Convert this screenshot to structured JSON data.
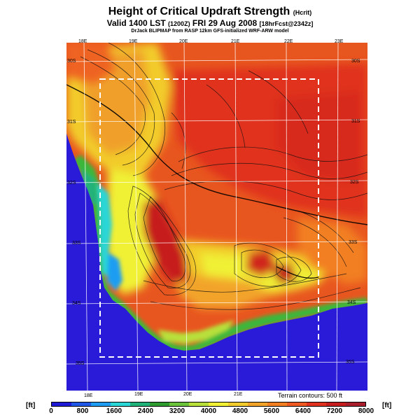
{
  "header": {
    "title_main": "Height of Critical Updraft Strength",
    "title_unit": "(Hcrit)",
    "valid_main": "Valid 1400 LST",
    "valid_zulu": "(1200Z)",
    "valid_date": "FRI 29 Aug 2008",
    "valid_fcst": "[18hrFcst@2342z]",
    "credit": "DrJack BLIPMAP from RASP 12km GFS-initialized WRF-ARW model"
  },
  "map": {
    "lon_labels_top": [
      "18E",
      "19E",
      "20E",
      "21E",
      "22E",
      "23E"
    ],
    "lon_labels_bottom": [
      "18E",
      "19E",
      "20E",
      "21E"
    ],
    "lat_labels_left": [
      "30S",
      "31S",
      "32S",
      "33S",
      "34S",
      "35S"
    ],
    "lat_labels_right": [
      "30S",
      "31S",
      "32S",
      "33S",
      "34S",
      "35S"
    ],
    "ocean_color": "#2a1bd8",
    "domain_box": "dashed-white"
  },
  "legend": {
    "unit_left": "[ft]",
    "unit_right": "[ft]",
    "terrain_note": "Terrain contours: 500 ft",
    "tick_labels": [
      "0",
      "800",
      "1600",
      "2400",
      "3200",
      "4000",
      "4800",
      "5600",
      "6400",
      "7200",
      "8000"
    ],
    "colors": [
      "#1f1ad6",
      "#1f58e6",
      "#1f9df2",
      "#2ad6d6",
      "#21b27a",
      "#2e9b2e",
      "#6cc43a",
      "#b8e03a",
      "#f0f034",
      "#f2cc2c",
      "#f2a42a",
      "#f27f22",
      "#ef5a22",
      "#e0321f",
      "#c61e1e",
      "#a81e2a"
    ]
  }
}
